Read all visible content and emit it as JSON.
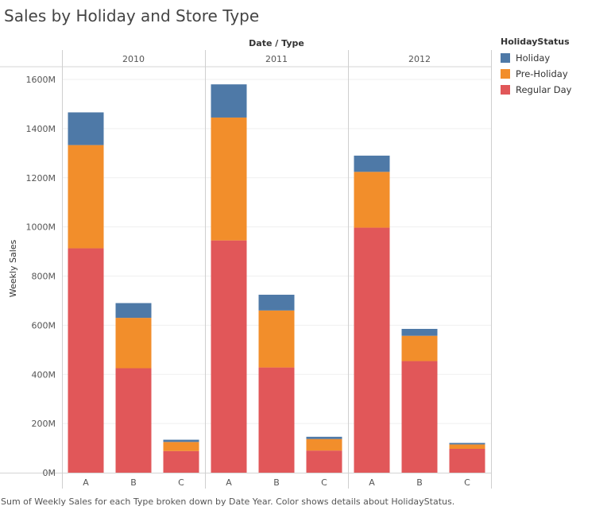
{
  "title": "Sales by Holiday and Store Type",
  "caption": "Sum of Weekly Sales for each Type broken down by Date Year.  Color shows details about HolidayStatus.",
  "legend": {
    "title": "HolidayStatus",
    "items": [
      {
        "label": "Holiday",
        "color": "#4e79a7"
      },
      {
        "label": "Pre-Holiday",
        "color": "#f28e2b"
      },
      {
        "label": "Regular Day",
        "color": "#e15759"
      }
    ]
  },
  "chart_data": {
    "type": "bar",
    "stacked": true,
    "column_header": "Date / Type",
    "panels": [
      "2010",
      "2011",
      "2012"
    ],
    "categories": [
      "A",
      "B",
      "C"
    ],
    "ylabel": "Weekly Sales",
    "ylim": [
      0,
      1700
    ],
    "yticks": [
      0,
      200,
      400,
      600,
      800,
      1000,
      1200,
      1400,
      1600
    ],
    "ytick_labels": [
      "0M",
      "200M",
      "400M",
      "600M",
      "800M",
      "1000M",
      "1200M",
      "1400M",
      "1600M"
    ],
    "grid": true,
    "legend_position": "right",
    "series": [
      {
        "name": "Regular Day",
        "color": "#e15759",
        "values": [
          [
            913,
            425,
            88
          ],
          [
            945,
            428,
            90
          ],
          [
            997,
            454,
            97
          ]
        ]
      },
      {
        "name": "Pre-Holiday",
        "color": "#f28e2b",
        "values": [
          [
            420,
            205,
            37
          ],
          [
            500,
            232,
            47
          ],
          [
            227,
            103,
            18
          ]
        ]
      },
      {
        "name": "Holiday",
        "color": "#4e79a7",
        "values": [
          [
            133,
            60,
            9
          ],
          [
            135,
            64,
            9
          ],
          [
            66,
            28,
            6
          ]
        ]
      }
    ]
  }
}
